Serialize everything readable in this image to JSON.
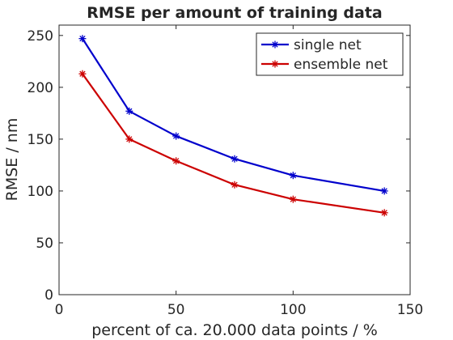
{
  "chart_data": {
    "type": "line",
    "title": "RMSE per amount of training data",
    "xlabel": "percent of ca. 20.000 data points / %",
    "ylabel": "RMSE / nm",
    "xlim": [
      0,
      150
    ],
    "ylim": [
      0,
      260
    ],
    "xticks": [
      0,
      50,
      100,
      150
    ],
    "yticks": [
      0,
      50,
      100,
      150,
      200,
      250
    ],
    "grid": false,
    "legend_position": "top-right",
    "x": [
      10,
      30,
      50,
      75,
      100,
      139
    ],
    "series": [
      {
        "name": "single net",
        "color": "#0000cc",
        "marker": "asterisk",
        "values": [
          247,
          177,
          153,
          131,
          115,
          100
        ]
      },
      {
        "name": "ensemble net",
        "color": "#cc0000",
        "marker": "asterisk",
        "values": [
          213,
          150,
          129,
          106,
          92,
          79
        ]
      }
    ]
  }
}
